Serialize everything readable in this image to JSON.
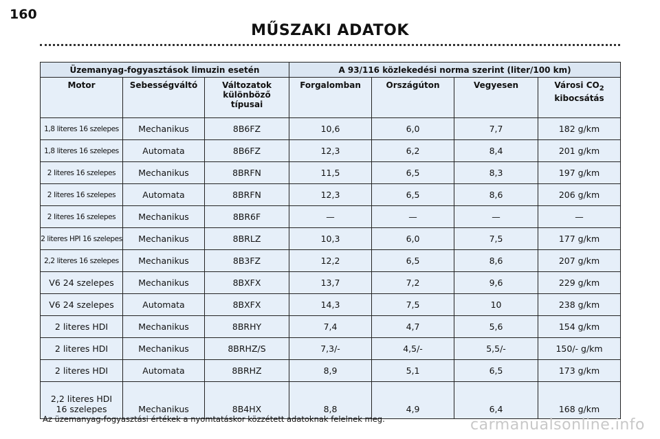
{
  "page_number": "160",
  "title": "MŰSZAKI ADATOK",
  "table": {
    "group_headers": [
      "Üzemanyag-fogyasztások limuzin esetén",
      "A 93/116 közlekedési norma szerint (liter/100 km)"
    ],
    "headers": [
      [
        "Motor"
      ],
      [
        "Sebességváltó"
      ],
      [
        "Változatok",
        "különböző",
        "típusai"
      ],
      [
        "Forgalomban"
      ],
      [
        "Országúton"
      ],
      [
        "Vegyesen"
      ],
      [
        "Városi CO",
        "2",
        "kibocsátás"
      ]
    ],
    "rows": [
      [
        "1,8 literes 16 szelepes",
        "Mechanikus",
        "8B6FZ",
        "10,6",
        "6,0",
        "7,7",
        "182 g/km"
      ],
      [
        "1,8 literes 16 szelepes",
        "Automata",
        "8B6FZ",
        "12,3",
        "6,2",
        "8,4",
        "201 g/km"
      ],
      [
        "2 literes 16 szelepes",
        "Mechanikus",
        "8BRFN",
        "11,5",
        "6,5",
        "8,3",
        "197 g/km"
      ],
      [
        "2 literes 16 szelepes",
        "Automata",
        "8BRFN",
        "12,3",
        "6,5",
        "8,6",
        "206 g/km"
      ],
      [
        "2 literes 16 szelepes",
        "Mechanikus",
        "8BR6F",
        "—",
        "—",
        "—",
        "—"
      ],
      [
        "2 literes HPI 16 szelepes",
        "Mechanikus",
        "8BRLZ",
        "10,3",
        "6,0",
        "7,5",
        "177 g/km"
      ],
      [
        "2,2 literes 16 szelepes",
        "Mechanikus",
        "8B3FZ",
        "12,2",
        "6,5",
        "8,6",
        "207 g/km"
      ],
      [
        "V6 24 szelepes",
        "Mechanikus",
        "8BXFX",
        "13,7",
        "7,2",
        "9,6",
        "229 g/km"
      ],
      [
        "V6 24 szelepes",
        "Automata",
        "8BXFX",
        "14,3",
        "7,5",
        "10",
        "238 g/km"
      ],
      [
        "2 literes HDI",
        "Mechanikus",
        "8BRHY",
        "7,4",
        "4,7",
        "5,6",
        "154 g/km"
      ],
      [
        "2 literes HDI",
        "Mechanikus",
        "8BRHZ/S",
        "7,3/-",
        "4,5/-",
        "5,5/-",
        "150/- g/km"
      ],
      [
        "2 literes HDI",
        "Automata",
        "8BRHZ",
        "8,9",
        "5,1",
        "6,5",
        "173 g/km"
      ],
      [
        [
          "2,2 literes HDI",
          "16 szelepes"
        ],
        "Mechanikus",
        "8B4HX",
        "8,8",
        "4,9",
        "6,4",
        "168 g/km"
      ]
    ]
  },
  "footnote": "Az üzemanyag-fogyasztási értékek a nyomtatáskor közzétett adatoknak felelnek meg.",
  "watermark": "carmanualsonline.info"
}
